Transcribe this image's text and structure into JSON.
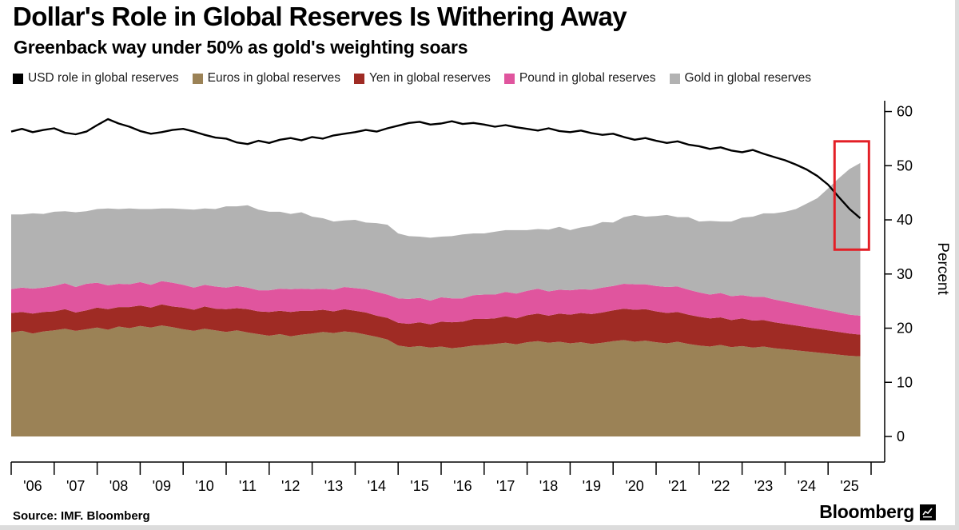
{
  "header": {
    "title": "Dollar's Role in Global Reserves Is Withering Away",
    "subtitle": "Greenback way under 50% as gold's weighting soars"
  },
  "legend": {
    "items": [
      {
        "label": "USD role in global reserves",
        "color": "#000000"
      },
      {
        "label": "Euros in global reserves",
        "color": "#9b8256"
      },
      {
        "label": "Yen in global reserves",
        "color": "#9f2b24"
      },
      {
        "label": "Pound in global reserves",
        "color": "#e0559e"
      },
      {
        "label": "Gold in global reserves",
        "color": "#b2b2b2"
      }
    ]
  },
  "footer": {
    "source": "Source: IMF. Bloomberg",
    "brand": "Bloomberg"
  },
  "chart_data": {
    "type": "area",
    "title": "Dollar's Role in Global Reserves Is Withering Away",
    "subtitle": "Greenback way under 50% as gold's weighting soars",
    "ylabel": "Percent",
    "ylim": [
      0,
      62
    ],
    "yticks": [
      0,
      10,
      20,
      30,
      40,
      50,
      60
    ],
    "x_axis_range": [
      2006,
      2026
    ],
    "x_start": 2006.0,
    "x_step": 0.25,
    "xticklabels": [
      "'06",
      "'07",
      "'08",
      "'09",
      "'10",
      "'11",
      "'12",
      "'13",
      "'14",
      "'15",
      "'16",
      "'17",
      "'18",
      "'19",
      "'20",
      "'21",
      "'22",
      "'23",
      "'24",
      "'25"
    ],
    "grid": false,
    "legend_position": "top",
    "line_series": {
      "id": "usd",
      "name": "USD role in global reserves",
      "color": "#000000",
      "values": [
        56.3,
        56.8,
        56.2,
        56.6,
        56.9,
        56.1,
        55.8,
        56.3,
        57.5,
        58.6,
        57.8,
        57.2,
        56.4,
        55.9,
        56.2,
        56.6,
        56.8,
        56.3,
        55.7,
        55.2,
        55.0,
        54.3,
        54.0,
        54.6,
        54.2,
        54.8,
        55.1,
        54.7,
        55.3,
        55.0,
        55.6,
        55.9,
        56.2,
        56.6,
        56.3,
        56.9,
        57.4,
        57.9,
        58.1,
        57.6,
        57.8,
        58.2,
        57.7,
        57.9,
        57.6,
        57.2,
        57.5,
        57.1,
        56.8,
        56.5,
        56.9,
        56.4,
        56.2,
        56.5,
        56.0,
        55.7,
        55.9,
        55.3,
        54.8,
        55.1,
        54.6,
        54.2,
        54.5,
        53.9,
        53.6,
        53.1,
        53.4,
        52.8,
        52.5,
        52.9,
        52.2,
        51.6,
        51.0,
        50.2,
        49.3,
        48.1,
        46.5,
        44.2,
        42.0,
        40.3
      ]
    },
    "stacked_series": [
      {
        "id": "euros",
        "name": "Euros in global reserves",
        "color": "#9b8256",
        "values": [
          19.2,
          19.5,
          19.0,
          19.4,
          19.6,
          19.9,
          19.5,
          19.8,
          20.1,
          19.7,
          20.3,
          20.0,
          20.4,
          20.1,
          20.5,
          20.2,
          19.8,
          19.5,
          19.9,
          19.6,
          19.3,
          19.6,
          19.2,
          18.9,
          18.6,
          18.9,
          18.5,
          18.8,
          19.0,
          19.3,
          19.1,
          19.4,
          19.2,
          18.8,
          18.4,
          17.9,
          16.8,
          16.5,
          16.7,
          16.4,
          16.6,
          16.3,
          16.5,
          16.8,
          16.9,
          17.1,
          17.3,
          17.0,
          17.4,
          17.6,
          17.3,
          17.5,
          17.2,
          17.4,
          17.1,
          17.3,
          17.6,
          17.8,
          17.5,
          17.7,
          17.4,
          17.2,
          17.5,
          17.1,
          16.8,
          16.6,
          16.9,
          16.5,
          16.7,
          16.4,
          16.6,
          16.3,
          16.1,
          15.9,
          15.7,
          15.5,
          15.3,
          15.1,
          14.9,
          14.8
        ]
      },
      {
        "id": "yen",
        "name": "Yen in global reserves",
        "color": "#9f2b24",
        "values": [
          3.6,
          3.5,
          3.7,
          3.6,
          3.5,
          3.6,
          3.4,
          3.5,
          3.7,
          3.8,
          3.6,
          3.9,
          3.8,
          3.7,
          3.9,
          3.8,
          4.0,
          3.9,
          4.1,
          4.0,
          4.2,
          4.1,
          4.3,
          4.2,
          4.4,
          4.3,
          4.5,
          4.4,
          4.2,
          4.1,
          4.0,
          4.1,
          4.0,
          4.1,
          3.9,
          4.0,
          4.2,
          4.3,
          4.4,
          4.3,
          4.6,
          4.8,
          4.7,
          4.9,
          4.8,
          4.7,
          4.9,
          4.8,
          5.0,
          5.1,
          5.0,
          5.2,
          5.3,
          5.4,
          5.5,
          5.6,
          5.7,
          5.8,
          5.9,
          5.8,
          5.7,
          5.6,
          5.5,
          5.4,
          5.3,
          5.2,
          5.1,
          5.0,
          5.1,
          5.0,
          4.9,
          4.8,
          4.7,
          4.6,
          4.5,
          4.4,
          4.3,
          4.2,
          4.1,
          4.0
        ]
      },
      {
        "id": "pound",
        "name": "Pound in global reserves",
        "color": "#e0559e",
        "values": [
          4.4,
          4.5,
          4.6,
          4.5,
          4.7,
          4.8,
          4.7,
          4.9,
          4.6,
          4.4,
          4.3,
          4.2,
          4.3,
          4.2,
          4.3,
          4.4,
          4.2,
          4.1,
          4.0,
          4.1,
          4.0,
          4.1,
          4.0,
          3.9,
          4.0,
          4.1,
          4.2,
          4.1,
          4.0,
          3.9,
          4.0,
          4.1,
          4.2,
          4.3,
          4.4,
          4.3,
          4.5,
          4.6,
          4.5,
          4.4,
          4.5,
          4.4,
          4.3,
          4.4,
          4.5,
          4.4,
          4.5,
          4.6,
          4.5,
          4.6,
          4.5,
          4.4,
          4.5,
          4.4,
          4.5,
          4.6,
          4.5,
          4.6,
          4.7,
          4.6,
          4.7,
          4.8,
          4.7,
          4.6,
          4.5,
          4.4,
          4.5,
          4.4,
          4.3,
          4.4,
          4.3,
          4.2,
          4.1,
          4.0,
          3.9,
          3.8,
          3.7,
          3.6,
          3.5,
          3.5
        ]
      },
      {
        "id": "gold",
        "name": "Gold in global reserves",
        "color": "#b2b2b2",
        "values": [
          13.8,
          13.5,
          13.9,
          13.6,
          13.7,
          13.3,
          13.8,
          13.4,
          13.6,
          14.2,
          13.8,
          14.0,
          13.5,
          14.0,
          13.4,
          13.7,
          14.0,
          14.4,
          14.1,
          14.3,
          15.0,
          14.7,
          15.2,
          14.9,
          14.5,
          14.2,
          13.9,
          14.1,
          13.4,
          13.0,
          12.6,
          12.3,
          12.6,
          12.3,
          12.7,
          12.9,
          12.0,
          11.6,
          11.3,
          11.6,
          11.2,
          11.5,
          11.8,
          11.4,
          11.3,
          11.6,
          11.4,
          11.7,
          11.2,
          11.0,
          11.4,
          11.6,
          11.1,
          11.4,
          11.8,
          12.1,
          11.7,
          12.3,
          12.8,
          12.5,
          12.9,
          13.3,
          12.8,
          13.4,
          13.1,
          13.6,
          13.2,
          13.8,
          14.3,
          14.8,
          15.4,
          15.9,
          16.6,
          17.5,
          18.9,
          20.3,
          22.5,
          24.8,
          26.9,
          28.2
        ]
      }
    ],
    "annotation": {
      "type": "rect",
      "color": "#e31f26",
      "x": [
        2025.15,
        2025.95
      ],
      "y": [
        34.5,
        54.5
      ]
    }
  }
}
